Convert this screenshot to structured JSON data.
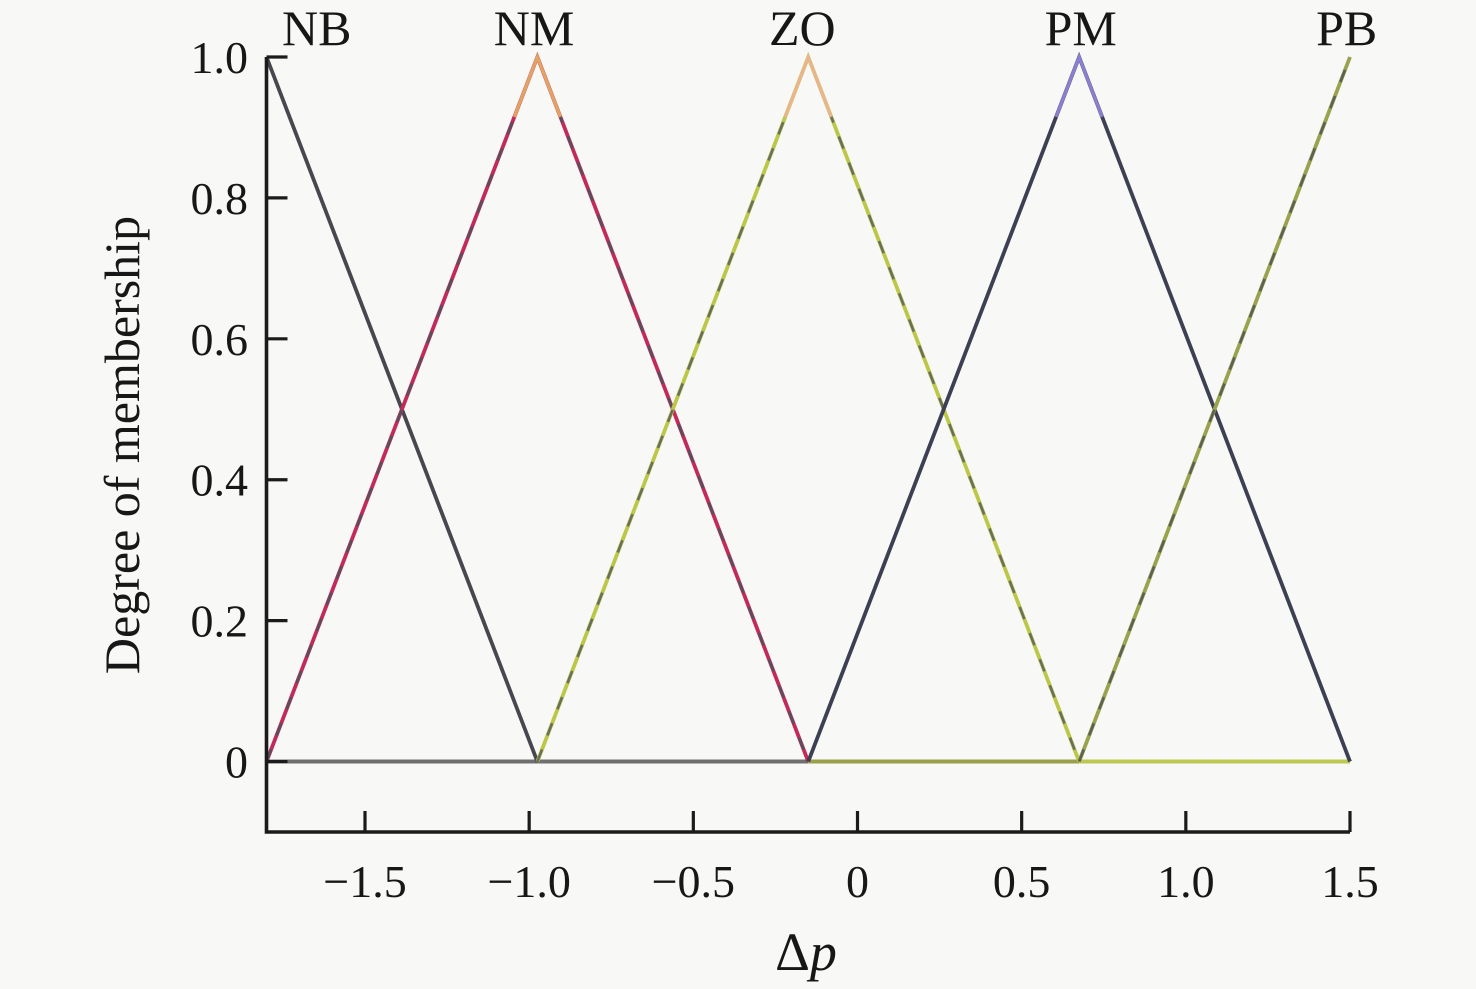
{
  "figure": {
    "background": "#f8f8f6",
    "axis_color": "#1b1b1b",
    "text_color": "#171717"
  },
  "axis_titles": {
    "y": "Degree of membership",
    "x_delta": "Δ",
    "x_var": "p"
  },
  "chart_data": {
    "type": "line",
    "xlabel": "Δp",
    "ylabel": "Degree of membership",
    "xlim": [
      -1.8,
      1.5
    ],
    "ylim": [
      -0.1,
      1.0
    ],
    "grid": false,
    "legend": "none, labels drawn above peaks",
    "x_ticks": [
      {
        "v": -1.5,
        "label": "−1.5"
      },
      {
        "v": -1.0,
        "label": "−1.0"
      },
      {
        "v": -0.5,
        "label": "−0.5"
      },
      {
        "v": 0,
        "label": "0"
      },
      {
        "v": 0.5,
        "label": "0.5"
      },
      {
        "v": 1.0,
        "label": "1.0"
      },
      {
        "v": 1.5,
        "label": "1.5"
      }
    ],
    "y_ticks": [
      {
        "v": 0,
        "label": "0"
      },
      {
        "v": 0.2,
        "label": "0.2"
      },
      {
        "v": 0.4,
        "label": "0.4"
      },
      {
        "v": 0.6,
        "label": "0.6"
      },
      {
        "v": 0.8,
        "label": "0.8"
      },
      {
        "v": 1.0,
        "label": "1.0"
      }
    ],
    "baseline_segments": [
      {
        "from": -1.8,
        "to": -0.15,
        "color": "#6f6f6f"
      },
      {
        "from": -0.15,
        "to": 0.675,
        "color": "#99a04a"
      },
      {
        "from": 0.675,
        "to": 1.5,
        "color": "#bdc853"
      }
    ],
    "series": [
      {
        "name": "NB",
        "points": [
          [
            -1.8,
            1
          ],
          [
            -0.975,
            0
          ]
        ],
        "color": "#47474f",
        "label_x": -1.647
      },
      {
        "name": "NM",
        "points": [
          [
            -1.8,
            0
          ],
          [
            -0.975,
            1
          ],
          [
            -0.15,
            0
          ]
        ],
        "color": "#c22a5a",
        "dash_overlay": "#55505c",
        "tip_color": "#e3a463",
        "label_x": -0.985
      },
      {
        "name": "ZO",
        "points": [
          [
            -0.975,
            0
          ],
          [
            -0.15,
            1
          ],
          [
            0.675,
            0
          ]
        ],
        "color": "#bcc748",
        "dash_overlay": "#6a6e5d",
        "tip_color": "#eab58e",
        "label_x": -0.168
      },
      {
        "name": "PM",
        "points": [
          [
            -0.15,
            0
          ],
          [
            0.675,
            1
          ],
          [
            1.5,
            0
          ]
        ],
        "color": "#3c4052",
        "tip_color": "#8a7fd0",
        "label_x": 0.68
      },
      {
        "name": "PB",
        "points": [
          [
            0.675,
            0
          ],
          [
            1.5,
            1
          ]
        ],
        "color": "#99a24c",
        "dash_overlay": "#5d6055",
        "label_x": 1.49
      }
    ]
  }
}
